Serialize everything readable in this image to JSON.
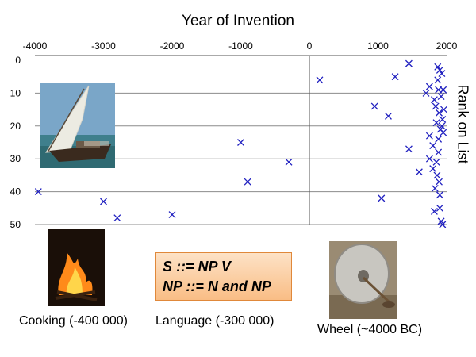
{
  "chart_data": {
    "type": "scatter",
    "title": "Year of Invention",
    "ylabel": "Rank on List",
    "xlim": [
      -4000,
      2000
    ],
    "ylim": [
      0,
      50
    ],
    "x_ticks": [
      -4000,
      -3000,
      -2000,
      -1000,
      0,
      1000,
      2000
    ],
    "y_ticks": [
      0,
      10,
      20,
      30,
      40,
      50
    ],
    "x_axis_position": "top",
    "y_axis_position": "left",
    "y_reversed": true,
    "grid": "horizontal",
    "marker": "x",
    "marker_color": "#2020c0",
    "points": [
      {
        "x": -3950,
        "y": 40
      },
      {
        "x": -3000,
        "y": 43
      },
      {
        "x": -2800,
        "y": 48
      },
      {
        "x": -2000,
        "y": 47
      },
      {
        "x": -1000,
        "y": 25
      },
      {
        "x": -900,
        "y": 37
      },
      {
        "x": -300,
        "y": 31
      },
      {
        "x": 150,
        "y": 6
      },
      {
        "x": 950,
        "y": 14
      },
      {
        "x": 1050,
        "y": 42
      },
      {
        "x": 1150,
        "y": 17
      },
      {
        "x": 1250,
        "y": 5
      },
      {
        "x": 1450,
        "y": 1
      },
      {
        "x": 1450,
        "y": 27
      },
      {
        "x": 1600,
        "y": 34
      },
      {
        "x": 1700,
        "y": 10
      },
      {
        "x": 1750,
        "y": 8
      },
      {
        "x": 1750,
        "y": 23
      },
      {
        "x": 1750,
        "y": 30
      },
      {
        "x": 1800,
        "y": 26
      },
      {
        "x": 1800,
        "y": 33
      },
      {
        "x": 1820,
        "y": 12
      },
      {
        "x": 1820,
        "y": 46
      },
      {
        "x": 1830,
        "y": 39
      },
      {
        "x": 1840,
        "y": 14
      },
      {
        "x": 1850,
        "y": 19
      },
      {
        "x": 1850,
        "y": 31
      },
      {
        "x": 1860,
        "y": 35
      },
      {
        "x": 1870,
        "y": 2
      },
      {
        "x": 1870,
        "y": 6
      },
      {
        "x": 1880,
        "y": 9
      },
      {
        "x": 1880,
        "y": 24
      },
      {
        "x": 1880,
        "y": 28
      },
      {
        "x": 1890,
        "y": 16
      },
      {
        "x": 1890,
        "y": 37
      },
      {
        "x": 1900,
        "y": 3
      },
      {
        "x": 1900,
        "y": 41
      },
      {
        "x": 1900,
        "y": 45
      },
      {
        "x": 1910,
        "y": 21
      },
      {
        "x": 1920,
        "y": 11
      },
      {
        "x": 1920,
        "y": 49
      },
      {
        "x": 1930,
        "y": 4
      },
      {
        "x": 1930,
        "y": 20
      },
      {
        "x": 1940,
        "y": 18
      },
      {
        "x": 1940,
        "y": 50
      },
      {
        "x": 1950,
        "y": 9
      },
      {
        "x": 1950,
        "y": 22
      },
      {
        "x": 1960,
        "y": 15
      }
    ]
  },
  "captions": {
    "cooking": "Cooking (-400 000)",
    "language": "Language (-300 000)",
    "wheel": "Wheel (~4000 BC)"
  },
  "grammar": {
    "line1": "S ::= NP V",
    "line2": "NP ::= N and NP"
  },
  "images": {
    "sailboat": "dhow-sailboat-photo",
    "fire": "campfire-photo",
    "wheel": "stone-wheel-photo"
  },
  "colors": {
    "marker": "#2020c0",
    "grid": "#8c8c8c",
    "callout_fill": "#fbd0a4",
    "callout_border": "#e0883a"
  }
}
